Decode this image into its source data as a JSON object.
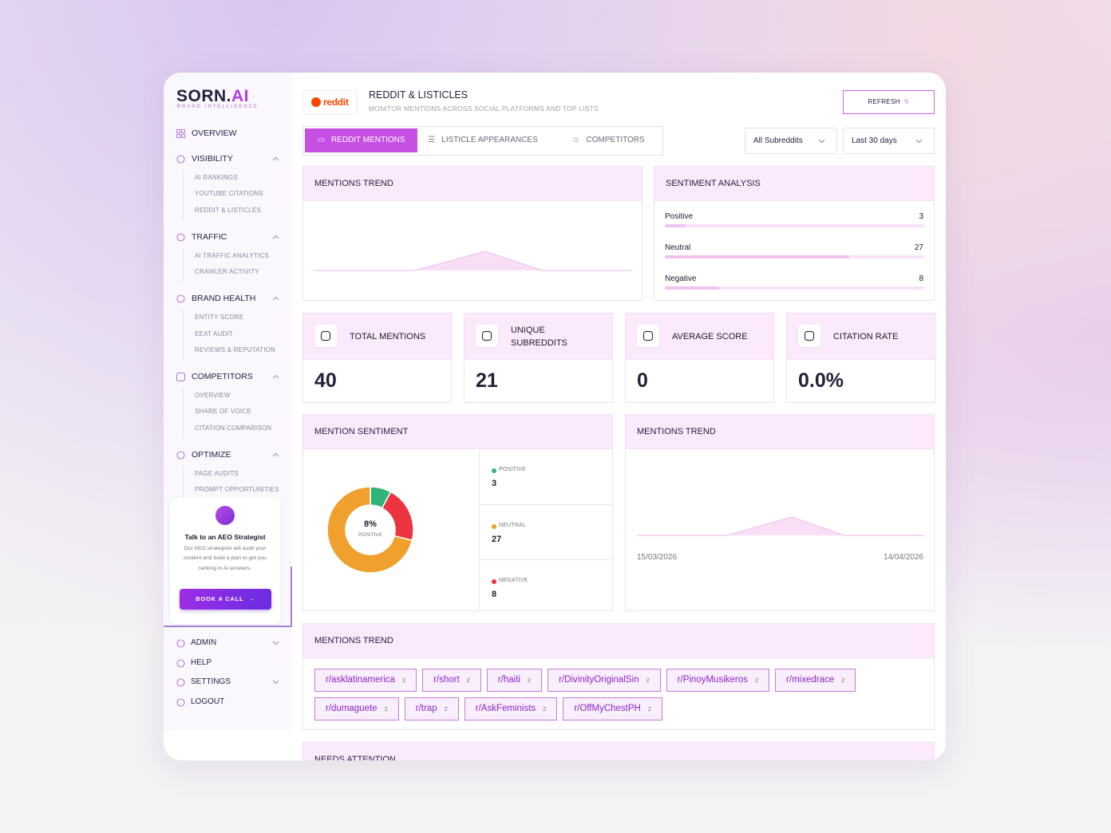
{
  "sidebar": {
    "logo": {
      "text": "SORN.",
      "accent": "AI"
    },
    "tagline": "BRAND INTELLIGENCE",
    "nav": [
      {
        "label": "OVERVIEW"
      },
      {
        "label": "VISIBILITY",
        "items": [
          "AI RANKINGS",
          "YOUTUBE CITATIONS",
          "REDDIT & LISTICLES"
        ]
      },
      {
        "label": "TRAFFIC",
        "items": [
          "AI TRAFFIC ANALYTICS",
          "CRAWLER ACTIVITY"
        ]
      },
      {
        "label": "BRAND HEALTH",
        "items": [
          "ENTITY SCORE",
          "EEAT AUDIT",
          "REVIEWS & REPUTATION"
        ]
      },
      {
        "label": "COMPETITORS",
        "items": [
          "OVERVIEW",
          "SHARE OF VOICE",
          "CITATION COMPARISON"
        ]
      },
      {
        "label": "OPTIMIZE",
        "items": [
          "PAGE AUDITS",
          "PROMPT OPPORTUNITIES"
        ]
      }
    ],
    "cta": {
      "title": "Talk to an AEO Strategist",
      "text": "Our AEO strategists will audit your content and build a plan to get you ranking in AI answers.",
      "button": "BOOK A CALL"
    },
    "footer_nav": [
      "ADMIN",
      "HELP",
      "SETTINGS",
      "LOGOUT"
    ]
  },
  "header": {
    "logo": "reddit",
    "title": "REDDIT & LISTICLES",
    "subtitle": "MONITOR MENTIONS ACROSS SOCIAL PLATFORMS AND TOP LISTS",
    "refresh": "REFRESH"
  },
  "tabs": [
    "REDDIT MENTIONS",
    "LISTICLE APPEARANCES",
    "COMPETITORS"
  ],
  "filters": [
    "All Subreddits",
    "Last 30 days"
  ],
  "trend_top": {
    "title": "MENTIONS TREND"
  },
  "sentiment_analysis": {
    "title": "SENTIMENT ANALYSIS",
    "rows": [
      {
        "label": "Positive",
        "value": 3
      },
      {
        "label": "Neutral",
        "value": 27
      },
      {
        "label": "Negative",
        "value": 8
      }
    ]
  },
  "stats": [
    {
      "label": "TOTAL MENTIONS",
      "value": 40
    },
    {
      "label": "UNIQUE SUBREDDITS",
      "value": 21
    },
    {
      "label": "AVERAGE SCORE",
      "value": 0
    },
    {
      "label": "CITATION RATE",
      "value": "0.0%"
    }
  ],
  "mention_sentiment": {
    "title": "MENTION SENTIMENT",
    "center_value": "8%",
    "center_label": "POSITIVE",
    "items": [
      {
        "label": "POSITIVE",
        "value": 3,
        "color": "#2fb47c"
      },
      {
        "label": "NEUTRAL",
        "value": 27,
        "color": "#f0a02c"
      },
      {
        "label": "NEGATIVE",
        "value": 8,
        "color": "#ec3440"
      }
    ]
  },
  "trend": {
    "title": "MENTIONS TREND",
    "start": "15/03/2026",
    "end": "14/04/2026"
  },
  "subreddits": {
    "title": "MENTIONS TREND",
    "items": [
      {
        "name": "r/asklatinamerica",
        "count": 2
      },
      {
        "name": "r/short",
        "count": 2
      },
      {
        "name": "r/haiti",
        "count": 2
      },
      {
        "name": "r/DivinityOriginalSin",
        "count": 2
      },
      {
        "name": "r/PinoyMusikeros",
        "count": 2
      },
      {
        "name": "r/mixedrace",
        "count": 2
      },
      {
        "name": "r/dumaguete",
        "count": 2
      },
      {
        "name": "r/trap",
        "count": 2
      },
      {
        "name": "r/AskFeminists",
        "count": 2
      },
      {
        "name": "r/OffMyChestPH",
        "count": 2
      }
    ]
  },
  "needs_attention": {
    "title": "NEEDS ATTENTION"
  }
}
